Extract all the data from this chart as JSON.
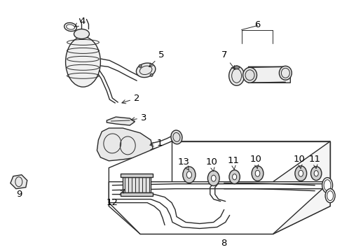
{
  "bg_color": "#ffffff",
  "line_color": "#2a2a2a",
  "label_color": "#000000",
  "dpi": 100,
  "figw": 4.89,
  "figh": 3.6
}
